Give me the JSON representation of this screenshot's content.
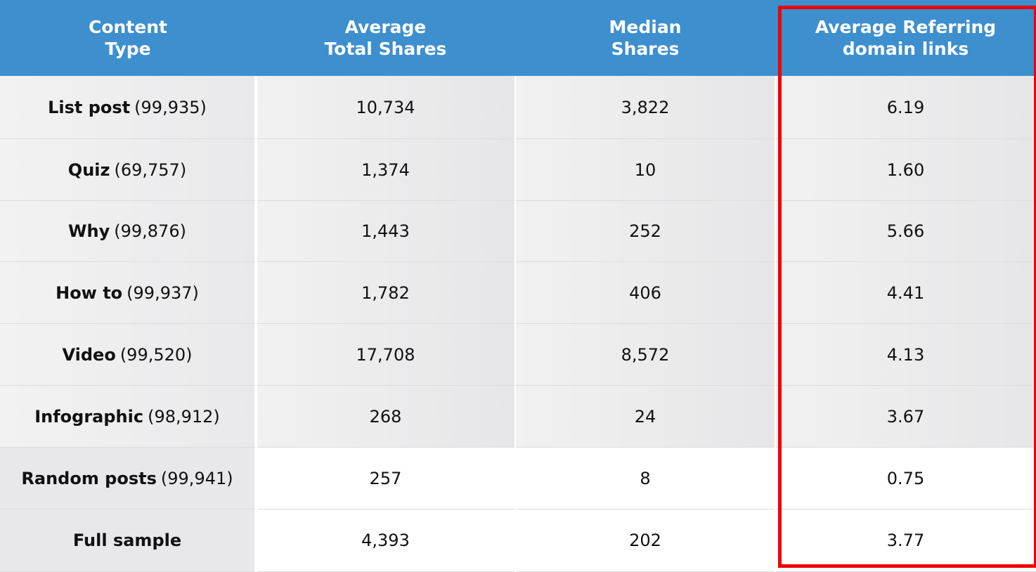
{
  "chart_data": {
    "type": "table",
    "columns": [
      "Content\nType",
      "Average\nTotal Shares",
      "Median\nShares",
      "Average Referring\ndomain links"
    ],
    "rows": [
      {
        "label": "List post",
        "count": "(99,935)",
        "values": [
          "10,734",
          "3,822",
          "6.19"
        ]
      },
      {
        "label": "Quiz",
        "count": "(69,757)",
        "values": [
          "1,374",
          "10",
          "1.60"
        ]
      },
      {
        "label": "Why",
        "count": "(99,876)",
        "values": [
          "1,443",
          "252",
          "5.66"
        ]
      },
      {
        "label": "How to",
        "count": "(99,937)",
        "values": [
          "1,782",
          "406",
          "4.41"
        ]
      },
      {
        "label": "Video",
        "count": "(99,520)",
        "values": [
          "17,708",
          "8,572",
          "4.13"
        ]
      },
      {
        "label": "Infographic",
        "count": "(98,912)",
        "values": [
          "268",
          "24",
          "3.67"
        ]
      },
      {
        "label": "Random posts",
        "count": "(99,941)",
        "values": [
          "257",
          "8",
          "0.75"
        ]
      },
      {
        "label": "Full sample",
        "count": "",
        "values": [
          "4,393",
          "202",
          "3.77"
        ]
      }
    ],
    "highlighted_column": 3,
    "colors": {
      "header_bg": "#3d8fce",
      "header_text": "#ffffff",
      "highlight_border": "#ee0000",
      "row_bg_top": "#f1f1f1",
      "row_bg_bottom": "#e6e6e8"
    }
  }
}
